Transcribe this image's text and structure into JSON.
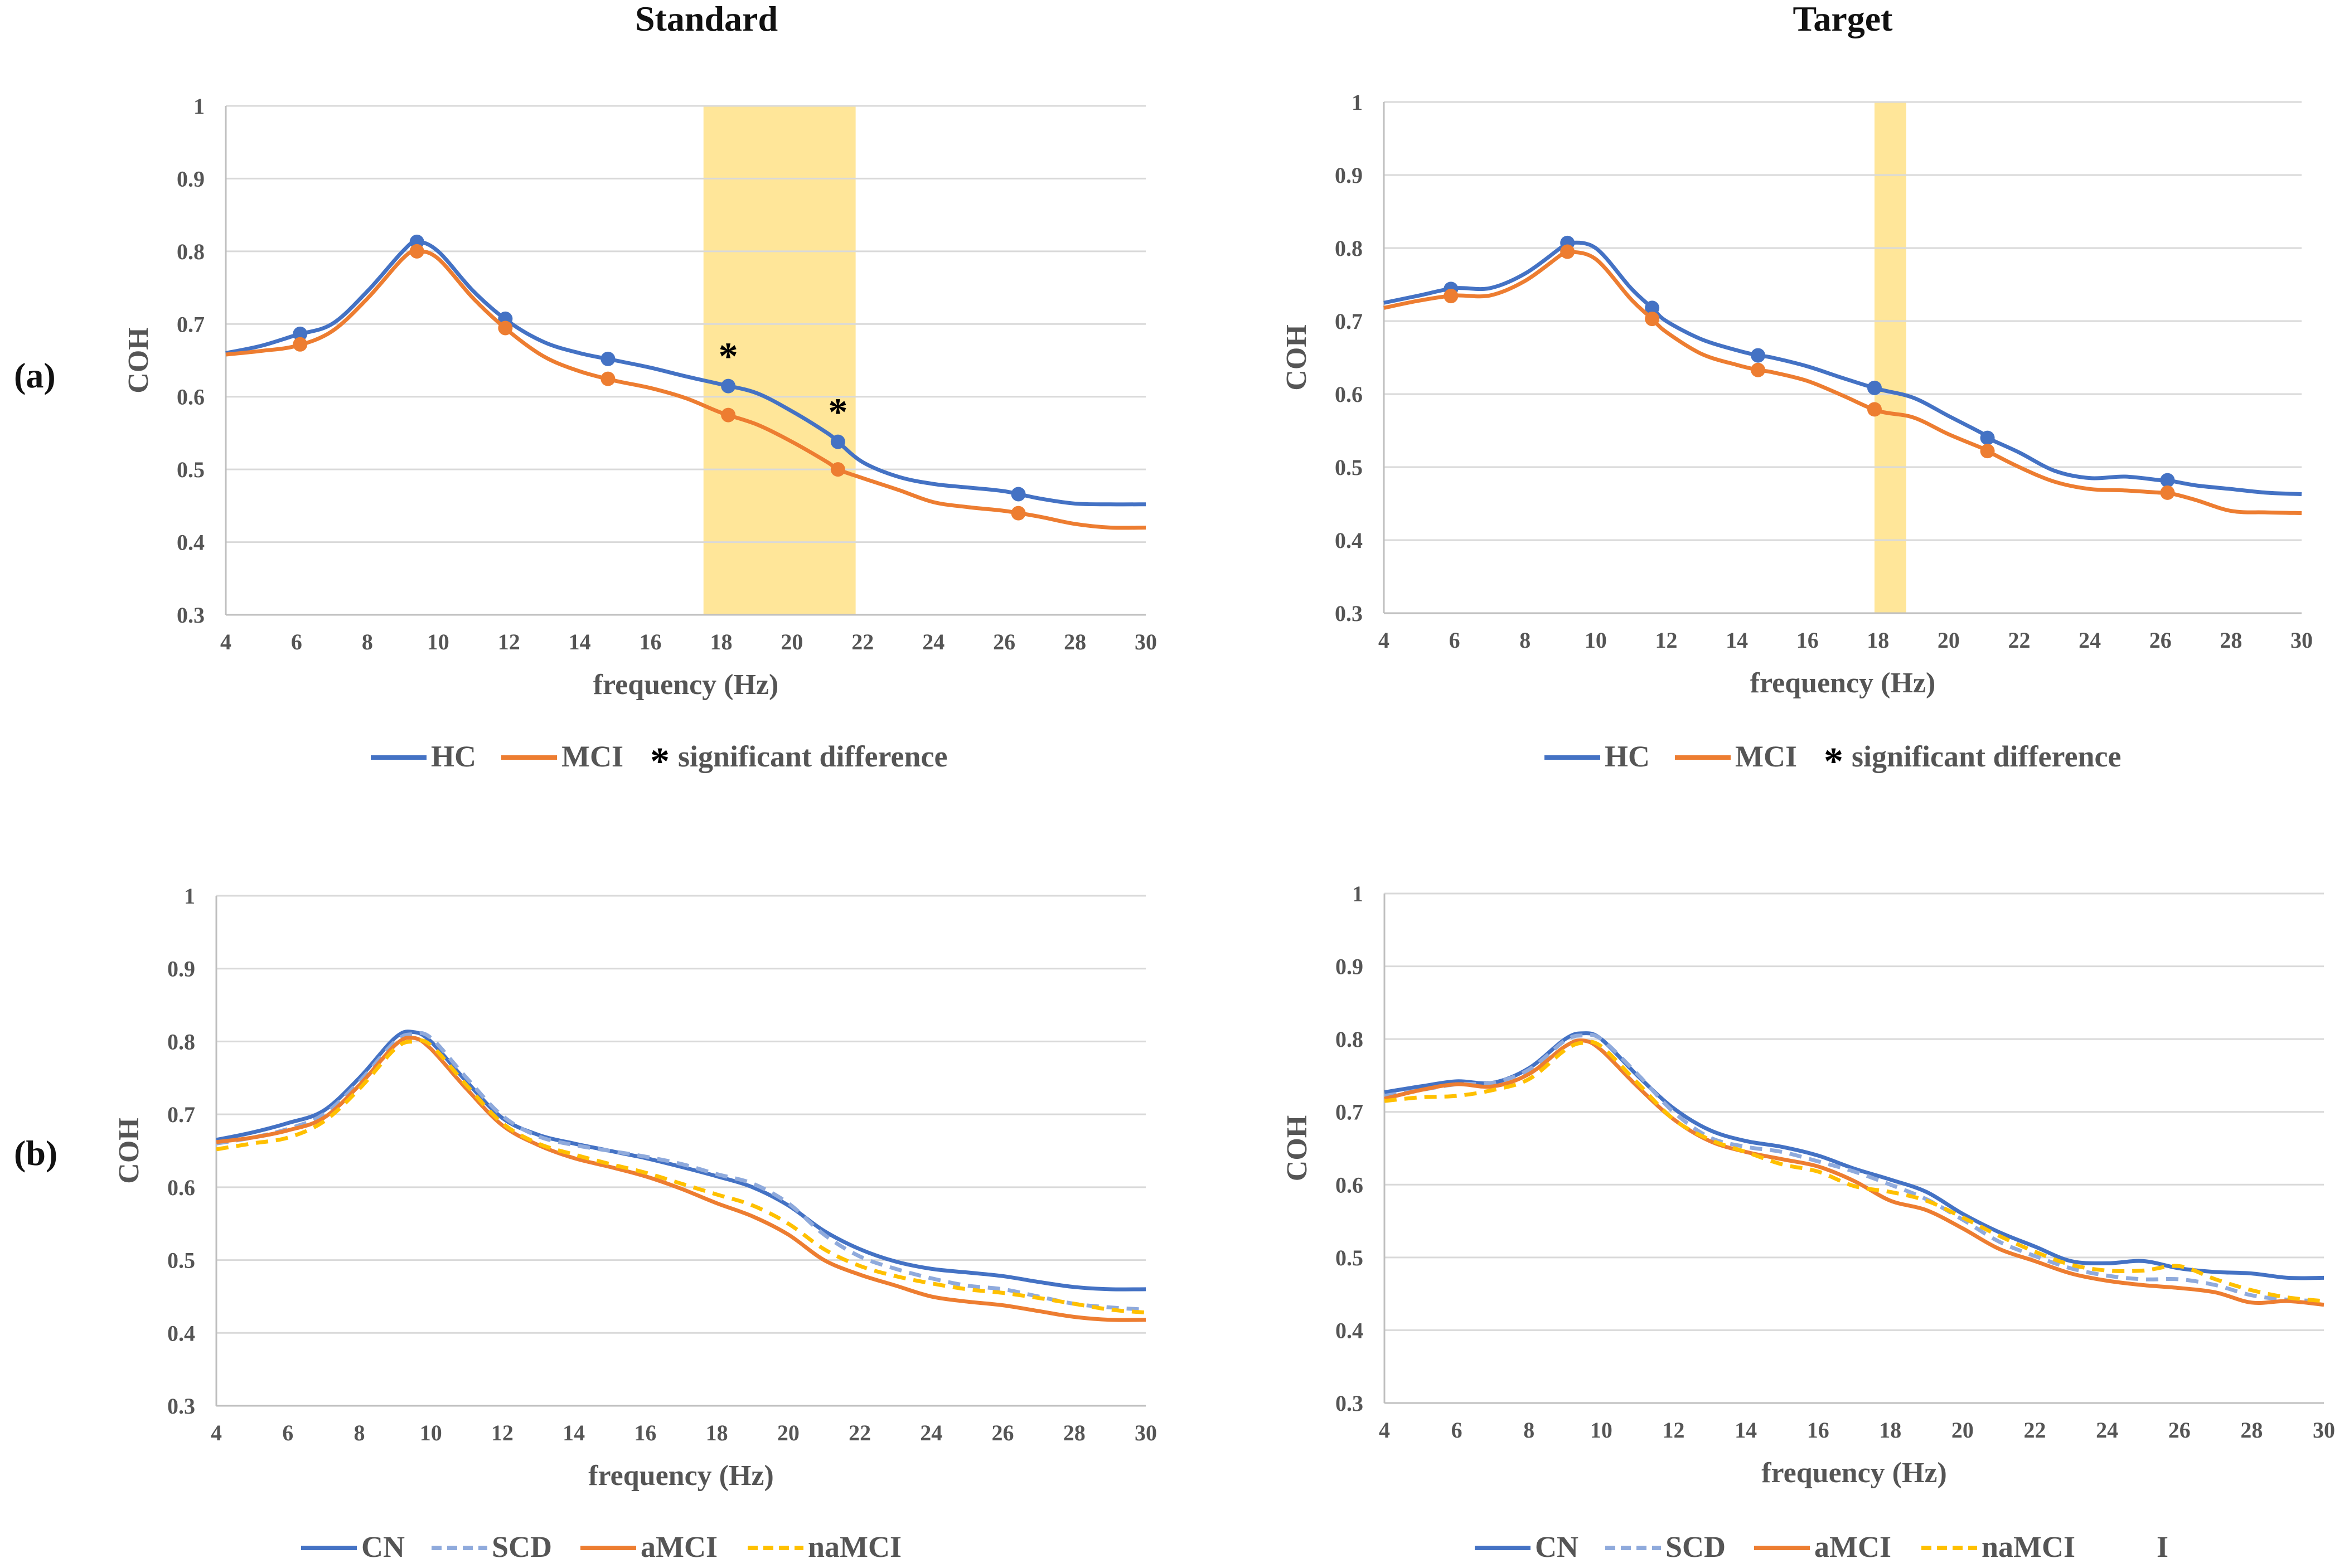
{
  "column_titles": [
    "Standard",
    "Target"
  ],
  "row_labels": [
    "(a)",
    "(b)"
  ],
  "colors": {
    "HC": "#4472c4",
    "MCI": "#ed7d31",
    "CN": "#4472c4",
    "SCD": "#8faadc",
    "aMCI": "#ed7d31",
    "naMCI": "#ffc000",
    "highlight": "#ffe699"
  },
  "legend_a": [
    {
      "label": "HC",
      "kind": "line",
      "color": "#4472c4"
    },
    {
      "label": "MCI",
      "kind": "line",
      "color": "#ed7d31"
    },
    {
      "label": "significant difference",
      "kind": "star"
    }
  ],
  "legend_b": [
    {
      "label": "CN",
      "kind": "line",
      "color": "#4472c4",
      "dash": false
    },
    {
      "label": "SCD",
      "kind": "line",
      "color": "#8faadc",
      "dash": true
    },
    {
      "label": "aMCI",
      "kind": "line",
      "color": "#ed7d31",
      "dash": false
    },
    {
      "label": "naMCI",
      "kind": "line",
      "color": "#ffc000",
      "dash": true
    }
  ],
  "stray_mark": "I",
  "chart_data": [
    {
      "id": "a-standard",
      "type": "line",
      "title": "Standard",
      "xlabel": "frequency (Hz)",
      "ylabel": "COH",
      "xlim": [
        4,
        30
      ],
      "ylim": [
        0.3,
        1
      ],
      "xticks": [
        "4",
        "6",
        "8",
        "10",
        "12",
        "14",
        "16",
        "18",
        "20",
        "22",
        "24",
        "26",
        "28",
        "30"
      ],
      "yticks": [
        "0.3",
        "0.4",
        "0.5",
        "0.6",
        "0.7",
        "0.8",
        "0.9",
        "1"
      ],
      "highlight_bands": [
        [
          17.5,
          21.8
        ]
      ],
      "significance_stars_x": [
        18.2,
        21.3
      ],
      "series": [
        {
          "name": "HC",
          "color": "#4472c4",
          "dash": false,
          "x": [
            4,
            5,
            6,
            7,
            8,
            9,
            9.4,
            10,
            11,
            12,
            13,
            14,
            15,
            16,
            17,
            18,
            19,
            20,
            21,
            21.3,
            22,
            23,
            24,
            25,
            26,
            27,
            28,
            29,
            30
          ],
          "y": [
            0.66,
            0.67,
            0.685,
            0.7,
            0.745,
            0.8,
            0.813,
            0.8,
            0.745,
            0.703,
            0.675,
            0.66,
            0.65,
            0.64,
            0.628,
            0.617,
            0.605,
            0.58,
            0.55,
            0.538,
            0.51,
            0.49,
            0.48,
            0.475,
            0.47,
            0.46,
            0.453,
            0.452,
            0.452
          ],
          "markers_x": [
            6.1,
            9.4,
            11.9,
            14.8,
            18.2,
            21.3,
            26.4
          ]
        },
        {
          "name": "MCI",
          "color": "#ed7d31",
          "dash": false,
          "x": [
            4,
            5,
            6,
            7,
            8,
            9,
            9.4,
            10,
            11,
            12,
            13,
            14,
            15,
            16,
            17,
            18,
            19,
            20,
            21,
            21.3,
            22,
            23,
            24,
            25,
            26,
            27,
            28,
            29,
            30
          ],
          "y": [
            0.658,
            0.663,
            0.67,
            0.69,
            0.735,
            0.79,
            0.8,
            0.79,
            0.735,
            0.69,
            0.655,
            0.635,
            0.622,
            0.612,
            0.598,
            0.578,
            0.562,
            0.538,
            0.51,
            0.5,
            0.488,
            0.472,
            0.455,
            0.448,
            0.443,
            0.435,
            0.425,
            0.42,
            0.42
          ],
          "markers_x": [
            6.1,
            9.4,
            11.9,
            14.8,
            18.2,
            21.3,
            26.4
          ]
        }
      ]
    },
    {
      "id": "a-target",
      "type": "line",
      "title": "Target",
      "xlabel": "frequency (Hz)",
      "ylabel": "COH",
      "xlim": [
        4,
        30
      ],
      "ylim": [
        0.3,
        1
      ],
      "xticks": [
        "4",
        "6",
        "8",
        "10",
        "12",
        "14",
        "16",
        "18",
        "20",
        "22",
        "24",
        "26",
        "28",
        "30"
      ],
      "yticks": [
        "0.3",
        "0.4",
        "0.5",
        "0.6",
        "0.7",
        "0.8",
        "0.9",
        "1"
      ],
      "highlight_bands": [
        [
          17.9,
          18.8
        ]
      ],
      "significance_stars_x": [],
      "series": [
        {
          "name": "HC",
          "color": "#4472c4",
          "dash": false,
          "x": [
            4,
            5,
            6,
            7,
            8,
            9,
            9.2,
            10,
            11,
            11.6,
            12,
            13,
            14,
            14.6,
            15,
            16,
            17,
            18,
            19,
            20,
            21,
            21.1,
            22,
            23,
            24,
            25,
            26,
            26.2,
            27,
            28,
            29,
            30
          ],
          "y": [
            0.725,
            0.735,
            0.745,
            0.745,
            0.765,
            0.8,
            0.807,
            0.8,
            0.745,
            0.718,
            0.7,
            0.675,
            0.66,
            0.653,
            0.65,
            0.638,
            0.622,
            0.607,
            0.595,
            0.57,
            0.545,
            0.54,
            0.52,
            0.495,
            0.485,
            0.487,
            0.482,
            0.482,
            0.475,
            0.47,
            0.465,
            0.463
          ],
          "markers_x": [
            5.9,
            9.2,
            11.6,
            14.6,
            17.9,
            21.1,
            26.2
          ]
        },
        {
          "name": "MCI",
          "color": "#ed7d31",
          "dash": false,
          "x": [
            4,
            5,
            6,
            7,
            8,
            9,
            9.2,
            10,
            11,
            11.6,
            12,
            13,
            14,
            14.6,
            15,
            16,
            17,
            18,
            19,
            20,
            21,
            21.1,
            22,
            23,
            24,
            25,
            26,
            26.2,
            27,
            28,
            29,
            30
          ],
          "y": [
            0.718,
            0.728,
            0.735,
            0.735,
            0.755,
            0.79,
            0.795,
            0.785,
            0.73,
            0.703,
            0.685,
            0.655,
            0.64,
            0.633,
            0.63,
            0.618,
            0.598,
            0.577,
            0.568,
            0.545,
            0.525,
            0.522,
            0.5,
            0.48,
            0.47,
            0.468,
            0.465,
            0.465,
            0.455,
            0.44,
            0.438,
            0.437
          ],
          "markers_x": [
            5.9,
            9.2,
            11.6,
            14.6,
            17.9,
            21.1,
            26.2
          ]
        }
      ]
    },
    {
      "id": "b-standard",
      "type": "line",
      "title": "Standard",
      "xlabel": "frequency (Hz)",
      "ylabel": "COH",
      "xlim": [
        4,
        30
      ],
      "ylim": [
        0.3,
        1
      ],
      "xticks": [
        "4",
        "6",
        "8",
        "10",
        "12",
        "14",
        "16",
        "18",
        "20",
        "22",
        "24",
        "26",
        "28",
        "30"
      ],
      "yticks": [
        "0.3",
        "0.4",
        "0.5",
        "0.6",
        "0.7",
        "0.8",
        "0.9",
        "1"
      ],
      "highlight_bands": [],
      "significance_stars_x": [],
      "series": [
        {
          "name": "CN",
          "color": "#4472c4",
          "dash": false,
          "x": [
            4,
            5,
            6,
            7,
            8,
            9,
            9.5,
            10,
            11,
            12,
            13,
            14,
            15,
            16,
            17,
            18,
            19,
            20,
            21,
            22,
            23,
            24,
            25,
            26,
            27,
            28,
            29,
            30
          ],
          "y": [
            0.665,
            0.675,
            0.688,
            0.705,
            0.75,
            0.805,
            0.813,
            0.8,
            0.745,
            0.695,
            0.672,
            0.66,
            0.65,
            0.64,
            0.628,
            0.615,
            0.6,
            0.575,
            0.54,
            0.515,
            0.498,
            0.488,
            0.483,
            0.478,
            0.47,
            0.463,
            0.46,
            0.46
          ]
        },
        {
          "name": "SCD",
          "color": "#8faadc",
          "dash": true,
          "x": [
            4,
            5,
            6,
            7,
            8,
            9,
            9.5,
            10,
            11,
            12,
            13,
            14,
            15,
            16,
            17,
            18,
            19,
            20,
            21,
            22,
            23,
            24,
            25,
            26,
            27,
            28,
            29,
            30
          ],
          "y": [
            0.66,
            0.668,
            0.68,
            0.7,
            0.745,
            0.8,
            0.81,
            0.805,
            0.75,
            0.698,
            0.67,
            0.658,
            0.65,
            0.642,
            0.632,
            0.618,
            0.605,
            0.578,
            0.535,
            0.505,
            0.488,
            0.475,
            0.465,
            0.46,
            0.45,
            0.44,
            0.435,
            0.432
          ]
        },
        {
          "name": "aMCI",
          "color": "#ed7d31",
          "dash": false,
          "x": [
            4,
            5,
            6,
            7,
            8,
            9,
            9.5,
            10,
            11,
            12,
            13,
            14,
            15,
            16,
            17,
            18,
            19,
            20,
            21,
            22,
            23,
            24,
            25,
            26,
            27,
            28,
            29,
            30
          ],
          "y": [
            0.662,
            0.668,
            0.678,
            0.695,
            0.74,
            0.795,
            0.805,
            0.79,
            0.735,
            0.685,
            0.658,
            0.64,
            0.628,
            0.615,
            0.598,
            0.578,
            0.56,
            0.535,
            0.5,
            0.48,
            0.465,
            0.45,
            0.443,
            0.438,
            0.43,
            0.422,
            0.418,
            0.418
          ]
        },
        {
          "name": "naMCI",
          "color": "#ffc000",
          "dash": true,
          "x": [
            4,
            5,
            6,
            7,
            8,
            9,
            9.5,
            10,
            11,
            12,
            13,
            14,
            15,
            16,
            17,
            18,
            19,
            20,
            21,
            22,
            23,
            24,
            25,
            26,
            27,
            28,
            29,
            30
          ],
          "y": [
            0.652,
            0.66,
            0.668,
            0.69,
            0.735,
            0.79,
            0.8,
            0.795,
            0.74,
            0.688,
            0.66,
            0.645,
            0.632,
            0.62,
            0.605,
            0.59,
            0.575,
            0.55,
            0.515,
            0.492,
            0.478,
            0.468,
            0.46,
            0.455,
            0.448,
            0.44,
            0.432,
            0.428
          ]
        }
      ]
    },
    {
      "id": "b-target",
      "type": "line",
      "title": "Target",
      "xlabel": "frequency (Hz)",
      "ylabel": "COH",
      "xlim": [
        4,
        30
      ],
      "ylim": [
        0.3,
        1
      ],
      "xticks": [
        "4",
        "6",
        "8",
        "10",
        "12",
        "14",
        "16",
        "18",
        "20",
        "22",
        "24",
        "26",
        "28",
        "30"
      ],
      "yticks": [
        "0.3",
        "0.4",
        "0.5",
        "0.6",
        "0.7",
        "0.8",
        "0.9",
        "1"
      ],
      "highlight_bands": [],
      "significance_stars_x": [],
      "series": [
        {
          "name": "CN",
          "color": "#4472c4",
          "dash": false,
          "x": [
            4,
            5,
            6,
            7,
            8,
            9,
            9.5,
            10,
            11,
            12,
            13,
            14,
            15,
            16,
            17,
            18,
            19,
            20,
            21,
            22,
            23,
            24,
            25,
            26,
            27,
            28,
            29,
            30
          ],
          "y": [
            0.727,
            0.735,
            0.742,
            0.74,
            0.76,
            0.8,
            0.808,
            0.8,
            0.75,
            0.705,
            0.675,
            0.66,
            0.652,
            0.64,
            0.622,
            0.607,
            0.59,
            0.56,
            0.535,
            0.515,
            0.495,
            0.492,
            0.495,
            0.485,
            0.48,
            0.478,
            0.472,
            0.472
          ]
        },
        {
          "name": "SCD",
          "color": "#8faadc",
          "dash": true,
          "x": [
            4,
            5,
            6,
            7,
            8,
            9,
            9.5,
            10,
            11,
            12,
            13,
            14,
            15,
            16,
            17,
            18,
            19,
            20,
            21,
            22,
            23,
            24,
            25,
            26,
            27,
            28,
            29,
            30
          ],
          "y": [
            0.722,
            0.73,
            0.738,
            0.74,
            0.758,
            0.798,
            0.805,
            0.8,
            0.752,
            0.7,
            0.665,
            0.652,
            0.645,
            0.632,
            0.618,
            0.6,
            0.58,
            0.552,
            0.522,
            0.502,
            0.485,
            0.475,
            0.47,
            0.47,
            0.462,
            0.448,
            0.442,
            0.44
          ]
        },
        {
          "name": "aMCI",
          "color": "#ed7d31",
          "dash": false,
          "x": [
            4,
            5,
            6,
            7,
            8,
            9,
            9.5,
            10,
            11,
            12,
            13,
            14,
            15,
            16,
            17,
            18,
            19,
            20,
            21,
            22,
            23,
            24,
            25,
            26,
            27,
            28,
            29,
            30
          ],
          "y": [
            0.718,
            0.73,
            0.738,
            0.735,
            0.752,
            0.79,
            0.798,
            0.785,
            0.735,
            0.69,
            0.66,
            0.645,
            0.635,
            0.625,
            0.605,
            0.578,
            0.565,
            0.54,
            0.512,
            0.495,
            0.478,
            0.468,
            0.462,
            0.458,
            0.452,
            0.438,
            0.44,
            0.435
          ]
        },
        {
          "name": "naMCI",
          "color": "#ffc000",
          "dash": true,
          "x": [
            4,
            5,
            6,
            7,
            8,
            9,
            9.5,
            10,
            11,
            12,
            13,
            14,
            15,
            16,
            17,
            18,
            19,
            20,
            21,
            22,
            23,
            24,
            25,
            26,
            27,
            28,
            29,
            30
          ],
          "y": [
            0.715,
            0.72,
            0.722,
            0.73,
            0.745,
            0.785,
            0.795,
            0.79,
            0.74,
            0.69,
            0.662,
            0.645,
            0.628,
            0.618,
            0.598,
            0.59,
            0.578,
            0.555,
            0.53,
            0.508,
            0.49,
            0.482,
            0.482,
            0.488,
            0.47,
            0.455,
            0.445,
            0.44
          ]
        }
      ]
    }
  ]
}
